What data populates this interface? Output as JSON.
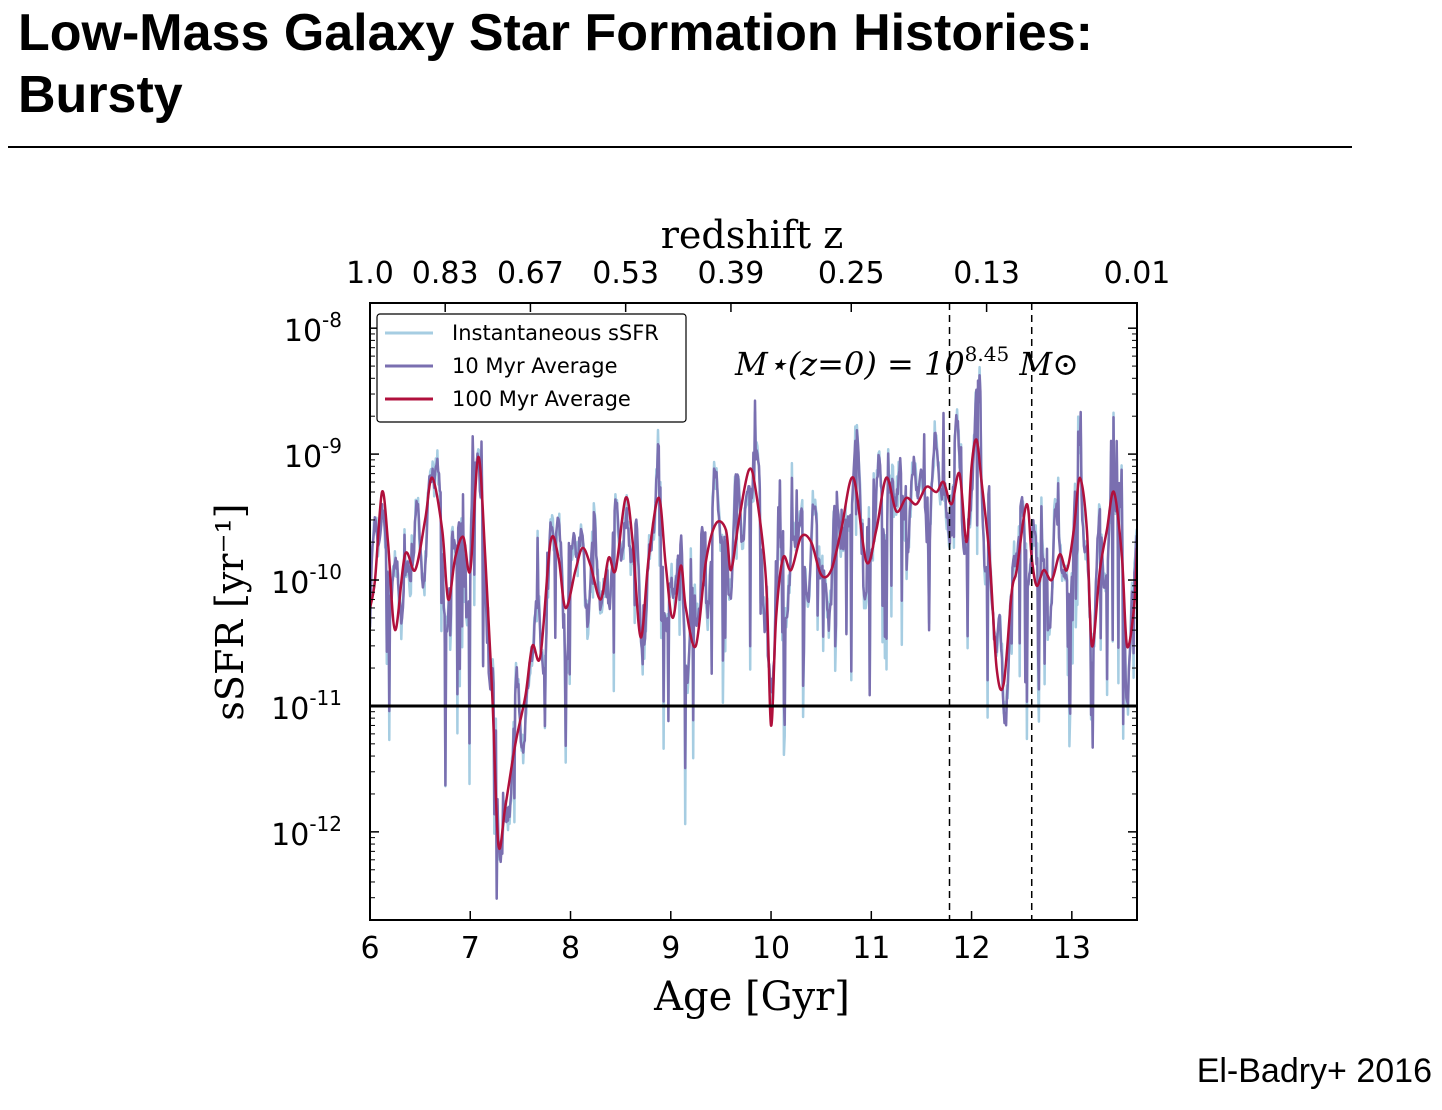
{
  "slide": {
    "title_line1": "Low-Mass Galaxy Star Formation Histories:",
    "title_line2": "Bursty",
    "citation": "El-Badry+ 2016"
  },
  "colors": {
    "instantaneous": "#a6cde2",
    "avg10": "#7a6fb0",
    "avg100": "#b0103c",
    "threshold": "#000000"
  },
  "chart_data": {
    "type": "line",
    "xlabel": "Age [Gyr]",
    "ylabel": "sSFR [yr⁻¹]",
    "top_axis_label": "redshift z",
    "xlim": [
      6,
      13.65
    ],
    "ylim_log10": [
      -12.7,
      -7.8
    ],
    "yscale": "log",
    "x_ticks": [
      "6",
      "7",
      "8",
      "9",
      "10",
      "11",
      "12",
      "13"
    ],
    "y_ticks": [
      {
        "base": "10",
        "exp": "-8",
        "value": 1e-08
      },
      {
        "base": "10",
        "exp": "-9",
        "value": 1e-09
      },
      {
        "base": "10",
        "exp": "-10",
        "value": 1e-10
      },
      {
        "base": "10",
        "exp": "-11",
        "value": 1e-11
      },
      {
        "base": "10",
        "exp": "-12",
        "value": 1e-12
      }
    ],
    "top_ticks": [
      {
        "label": "1.0",
        "age": 6.0
      },
      {
        "label": "0.83",
        "age": 6.75
      },
      {
        "label": "0.67",
        "age": 7.6
      },
      {
        "label": "0.53",
        "age": 8.55
      },
      {
        "label": "0.39",
        "age": 9.6
      },
      {
        "label": "0.25",
        "age": 10.8
      },
      {
        "label": "0.13",
        "age": 12.15
      },
      {
        "label": "0.01",
        "age": 13.65
      }
    ],
    "annotation": {
      "main": "M⋆(z=0) = 10",
      "exp": "8.45",
      "unit": " M⊙"
    },
    "threshold_line": 1e-11,
    "vertical_dashed_lines": [
      11.78,
      12.6
    ],
    "legend": {
      "position": "top-left",
      "entries": [
        "Instantaneous sSFR",
        "10 Myr Average",
        "100 Myr Average"
      ]
    },
    "series": [
      {
        "name": "100 Myr Average",
        "x": [
          6.0,
          6.05,
          6.12,
          6.18,
          6.25,
          6.35,
          6.45,
          6.55,
          6.62,
          6.72,
          6.78,
          6.85,
          6.93,
          7.0,
          7.08,
          7.15,
          7.22,
          7.28,
          7.35,
          7.45,
          7.55,
          7.62,
          7.7,
          7.8,
          7.88,
          7.95,
          8.05,
          8.12,
          8.2,
          8.3,
          8.38,
          8.45,
          8.55,
          8.62,
          8.7,
          8.78,
          8.88,
          8.95,
          9.02,
          9.1,
          9.15,
          9.25,
          9.35,
          9.45,
          9.55,
          9.6,
          9.68,
          9.78,
          9.85,
          9.95,
          10.0,
          10.05,
          10.12,
          10.2,
          10.3,
          10.4,
          10.5,
          10.6,
          10.7,
          10.82,
          10.95,
          11.05,
          11.15,
          11.25,
          11.35,
          11.45,
          11.55,
          11.65,
          11.72,
          11.8,
          11.88,
          11.95,
          12.0,
          12.05,
          12.1,
          12.18,
          12.25,
          12.32,
          12.4,
          12.45,
          12.55,
          12.6,
          12.65,
          12.72,
          12.8,
          12.88,
          12.95,
          13.02,
          13.08,
          13.15,
          13.2,
          13.28,
          13.35,
          13.42,
          13.5,
          13.55,
          13.62,
          13.65
        ],
        "y": [
          6e-11,
          1e-10,
          5e-10,
          2e-10,
          4e-11,
          1.6e-10,
          1.2e-10,
          3e-10,
          6.5e-10,
          2.5e-10,
          7e-11,
          1.5e-10,
          2.2e-10,
          1.2e-10,
          9.5e-10,
          1.5e-10,
          1.2e-11,
          8e-13,
          1.6e-12,
          5e-12,
          1.2e-11,
          3e-11,
          2.5e-11,
          2e-10,
          1.5e-10,
          6e-11,
          1.2e-10,
          1.8e-10,
          1.3e-10,
          7e-11,
          1.5e-10,
          1.2e-10,
          4.5e-10,
          2e-10,
          3.5e-11,
          1.5e-10,
          4.5e-10,
          1.3e-10,
          5e-11,
          1.3e-10,
          6e-11,
          3e-11,
          1.4e-10,
          2.8e-10,
          2.5e-10,
          1.2e-10,
          3e-10,
          7.5e-10,
          5e-10,
          1e-10,
          7e-12,
          5e-11,
          1.5e-10,
          1.2e-10,
          2.2e-10,
          2e-10,
          1.1e-10,
          1.2e-10,
          2.5e-10,
          6.5e-10,
          1.4e-10,
          2.5e-10,
          6.5e-10,
          3.5e-10,
          4.5e-10,
          4e-10,
          5.5e-10,
          5e-10,
          6e-10,
          4e-10,
          7e-10,
          2e-10,
          8e-10,
          1.3e-09,
          6e-10,
          1.5e-10,
          2e-11,
          1.5e-11,
          8e-11,
          1.2e-10,
          4e-10,
          1.5e-10,
          9e-11,
          1.2e-10,
          1e-10,
          1.6e-10,
          1.2e-10,
          2.5e-10,
          6.5e-10,
          2.5e-10,
          3e-11,
          1.2e-10,
          2.5e-10,
          5e-10,
          1.5e-10,
          3e-11,
          6e-11,
          1.8e-10
        ]
      }
    ]
  }
}
